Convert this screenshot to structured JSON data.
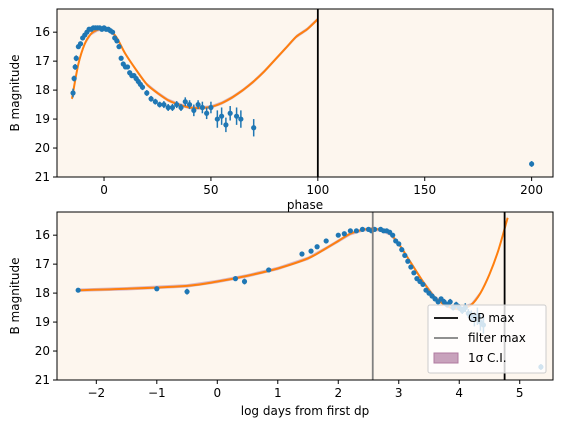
{
  "colors": {
    "background": "#fdf6ee",
    "data_points": "#1f77b4",
    "gp_fit": "#ff7f0e",
    "ci_band": "#b07aa1",
    "gp_max_line": "#000000",
    "filter_max_line": "#808080"
  },
  "chart_data": [
    {
      "type": "scatter",
      "title": "",
      "xlabel": "phase",
      "ylabel": "B magnitude",
      "xlim": [
        -22,
        210
      ],
      "ylim": [
        21,
        15.2
      ],
      "inverted_y": true,
      "x_ticks": [
        0,
        50,
        100,
        150,
        200
      ],
      "y_ticks": [
        16,
        17,
        18,
        19,
        20,
        21
      ],
      "grid": false,
      "series": [
        {
          "kind": "points",
          "x": [
            -14.5,
            -14,
            -13.5,
            -13,
            -12,
            -11,
            -10,
            -9,
            -8,
            -7,
            -6,
            -5,
            -4,
            -3,
            -2,
            -1,
            0,
            1,
            2,
            3,
            4,
            5,
            6,
            7,
            8,
            9,
            10,
            11,
            12,
            13,
            14,
            15,
            16,
            17,
            18,
            20,
            22,
            24,
            26,
            28,
            30,
            32,
            34,
            36,
            38,
            40,
            42,
            44,
            46,
            48,
            50,
            53,
            55,
            57,
            59,
            62,
            64,
            70,
            200
          ],
          "y": [
            18.1,
            17.6,
            17.2,
            16.9,
            16.5,
            16.4,
            16.2,
            16.1,
            16.0,
            15.9,
            15.9,
            15.85,
            15.85,
            15.85,
            15.85,
            15.9,
            15.85,
            15.9,
            15.9,
            15.95,
            16.0,
            16.2,
            16.3,
            16.5,
            16.9,
            17.1,
            17.2,
            17.2,
            17.4,
            17.5,
            17.5,
            17.6,
            17.7,
            17.8,
            17.9,
            18.1,
            18.3,
            18.4,
            18.5,
            18.5,
            18.6,
            18.6,
            18.5,
            18.6,
            18.4,
            18.5,
            18.7,
            18.5,
            18.6,
            18.8,
            18.6,
            19.0,
            18.9,
            19.2,
            18.8,
            18.9,
            19.0,
            19.3,
            20.55
          ],
          "yerr": [
            0.15,
            0.1,
            0.1,
            0.1,
            0.05,
            0.05,
            0.05,
            0.05,
            0.05,
            0.05,
            0.05,
            0.05,
            0.05,
            0.05,
            0.05,
            0.05,
            0.05,
            0.05,
            0.05,
            0.05,
            0.05,
            0.05,
            0.05,
            0.05,
            0.08,
            0.08,
            0.08,
            0.08,
            0.08,
            0.08,
            0.08,
            0.08,
            0.1,
            0.1,
            0.1,
            0.1,
            0.1,
            0.1,
            0.1,
            0.12,
            0.12,
            0.12,
            0.12,
            0.12,
            0.15,
            0.15,
            0.2,
            0.15,
            0.2,
            0.2,
            0.2,
            0.3,
            0.3,
            0.25,
            0.25,
            0.3,
            0.3,
            0.3,
            0.1
          ]
        },
        {
          "kind": "gp_fit",
          "x": [
            -15,
            -12,
            -9,
            -6,
            -3,
            0,
            3,
            6,
            10,
            15,
            20,
            25,
            30,
            35,
            40,
            45,
            50,
            55,
            60,
            65,
            70,
            75,
            80,
            85,
            90,
            95,
            100
          ],
          "y": [
            18.3,
            17.1,
            16.4,
            16.05,
            15.92,
            15.88,
            15.95,
            16.2,
            16.75,
            17.3,
            17.8,
            18.1,
            18.35,
            18.5,
            18.6,
            18.62,
            18.58,
            18.45,
            18.25,
            18.0,
            17.7,
            17.35,
            16.95,
            16.55,
            16.15,
            15.9,
            15.55
          ]
        }
      ],
      "vlines": [
        {
          "name": "GP max",
          "x": 100
        }
      ]
    },
    {
      "type": "scatter",
      "title": "",
      "xlabel": "log days from first dp",
      "ylabel": "B magnitude",
      "xlim": [
        -2.65,
        5.55
      ],
      "ylim": [
        21,
        15.2
      ],
      "inverted_y": true,
      "x_ticks": [
        -2,
        -1,
        0,
        1,
        2,
        3,
        4,
        5
      ],
      "y_ticks": [
        16,
        17,
        18,
        19,
        20,
        21
      ],
      "grid": false,
      "series": [
        {
          "kind": "points",
          "x": [
            -2.3,
            -1.0,
            -0.5,
            0.3,
            0.45,
            0.85,
            1.4,
            1.55,
            1.65,
            1.8,
            2.0,
            2.1,
            2.2,
            2.3,
            2.4,
            2.5,
            2.55,
            2.6,
            2.7,
            2.75,
            2.8,
            2.85,
            2.9,
            2.95,
            3.0,
            3.05,
            3.1,
            3.15,
            3.2,
            3.25,
            3.3,
            3.35,
            3.4,
            3.45,
            3.5,
            3.55,
            3.6,
            3.65,
            3.7,
            3.75,
            3.8,
            3.85,
            3.9,
            3.95,
            4.0,
            4.05,
            4.1,
            4.15,
            4.2,
            4.25,
            4.3,
            4.35,
            4.4,
            5.35
          ],
          "y": [
            17.9,
            17.85,
            17.95,
            17.5,
            17.6,
            17.2,
            16.65,
            16.55,
            16.4,
            16.2,
            16.0,
            15.95,
            15.85,
            15.85,
            15.8,
            15.8,
            15.85,
            15.8,
            15.8,
            15.85,
            15.85,
            15.9,
            16.0,
            16.2,
            16.3,
            16.5,
            16.7,
            16.9,
            17.1,
            17.3,
            17.5,
            17.6,
            17.7,
            17.9,
            18.0,
            18.1,
            18.2,
            18.3,
            18.2,
            18.3,
            18.4,
            18.3,
            18.5,
            18.4,
            18.5,
            18.6,
            18.5,
            18.7,
            18.8,
            18.9,
            18.8,
            19.0,
            19.1,
            20.55
          ],
          "yerr": [
            0.05,
            0.05,
            0.1,
            0.05,
            0.1,
            0.05,
            0.05,
            0.05,
            0.05,
            0.05,
            0.05,
            0.05,
            0.05,
            0.05,
            0.05,
            0.05,
            0.05,
            0.05,
            0.05,
            0.05,
            0.05,
            0.05,
            0.05,
            0.05,
            0.05,
            0.05,
            0.05,
            0.05,
            0.05,
            0.05,
            0.05,
            0.05,
            0.05,
            0.05,
            0.05,
            0.08,
            0.08,
            0.08,
            0.08,
            0.1,
            0.1,
            0.1,
            0.1,
            0.1,
            0.12,
            0.12,
            0.15,
            0.15,
            0.2,
            0.25,
            0.3,
            0.3,
            0.3,
            0.1
          ]
        },
        {
          "kind": "gp_fit",
          "x": [
            -2.3,
            -1.5,
            -0.5,
            0.0,
            0.5,
            1.0,
            1.5,
            1.8,
            2.0,
            2.2,
            2.4,
            2.55,
            2.7,
            2.85,
            3.0,
            3.2,
            3.4,
            3.6,
            3.8,
            4.0,
            4.2,
            4.35,
            4.5,
            4.65,
            4.8
          ],
          "y": [
            17.9,
            17.85,
            17.75,
            17.6,
            17.4,
            17.15,
            16.8,
            16.45,
            16.2,
            15.95,
            15.82,
            15.78,
            15.82,
            15.95,
            16.3,
            16.95,
            17.6,
            18.15,
            18.45,
            18.55,
            18.4,
            18.0,
            17.35,
            16.5,
            15.4
          ]
        }
      ],
      "vlines": [
        {
          "name": "GP max",
          "x": 4.75
        },
        {
          "name": "filter max",
          "x": 2.57
        }
      ],
      "legend": {
        "placement": "lower-right",
        "entries": [
          "GP max",
          "filter max",
          "1σ C.I."
        ]
      }
    }
  ]
}
